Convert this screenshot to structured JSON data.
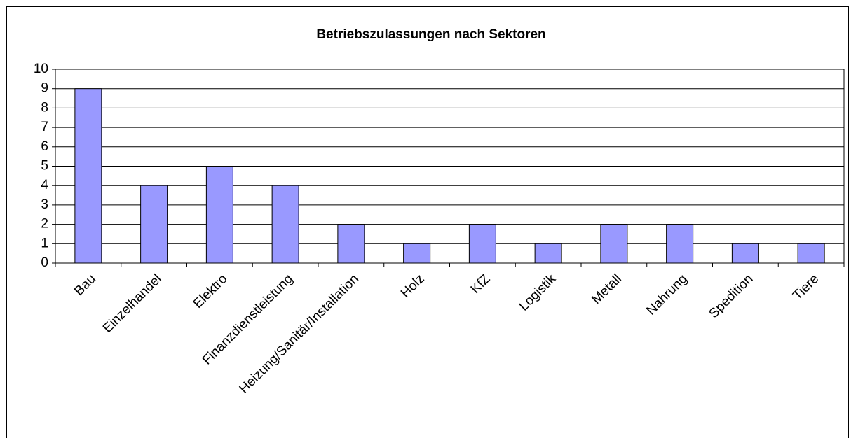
{
  "chart_data": {
    "type": "bar",
    "title": "Betriebszulassungen nach Sektoren",
    "categories": [
      "Bau",
      "Einzelhandel",
      "Elektro",
      "Finanzdienstleistung",
      "Heizung/Sanitär/Installation",
      "Holz",
      "KfZ",
      "Logistik",
      "Metall",
      "Nahrung",
      "Spedition",
      "Tiere"
    ],
    "values": [
      9,
      4,
      5,
      4,
      2,
      1,
      2,
      1,
      2,
      2,
      1,
      1
    ],
    "color": "#9999ff",
    "ylim": [
      0,
      10
    ],
    "yticks": [
      0,
      1,
      2,
      3,
      4,
      5,
      6,
      7,
      8,
      9,
      10
    ],
    "grid": true
  }
}
